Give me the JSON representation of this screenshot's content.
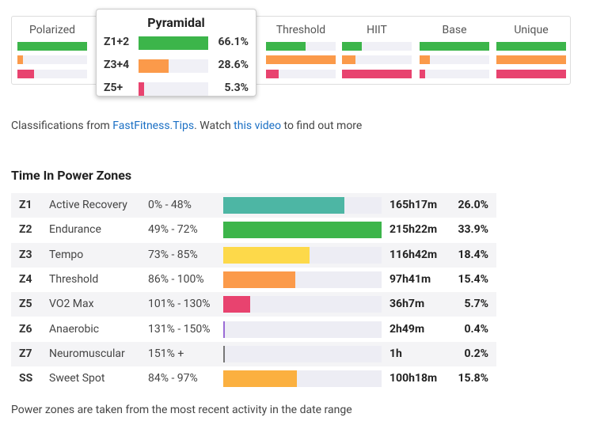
{
  "classifications": {
    "columns": [
      {
        "name": "Polarized",
        "values": [
          100,
          8,
          24
        ]
      },
      {
        "name": "Pyramidal",
        "labels": [
          "Z1+2",
          "Z3+4",
          "Z5+"
        ],
        "values": [
          66.1,
          28.6,
          5.3
        ],
        "value_labels": [
          "66.1%",
          "28.6%",
          "5.3%"
        ]
      },
      {
        "name": "Threshold",
        "values": [
          57,
          100,
          18
        ]
      },
      {
        "name": "HIIT",
        "values": [
          28,
          19,
          100
        ]
      },
      {
        "name": "Base",
        "values": [
          100,
          15,
          8
        ]
      },
      {
        "name": "Unique",
        "values": [
          100,
          100,
          100
        ]
      }
    ],
    "colors": [
      "#3cb54a",
      "#fb9a4a",
      "#e8436f"
    ],
    "highlighted": 1
  },
  "note": {
    "prefix": "Classifications from ",
    "link1": "FastFitness.Tips",
    "middle": ". Watch ",
    "link2": "this video",
    "suffix": " to find out more"
  },
  "table": {
    "title": "Time In Power Zones",
    "rows": [
      {
        "zone": "Z1",
        "name": "Active Recovery",
        "range": "0% - 48%",
        "time": "165h17m",
        "percent": {
          "value": 26.0,
          "label": "26.0%"
        },
        "color": "#4db6a4"
      },
      {
        "zone": "Z2",
        "name": "Endurance",
        "range": "49% - 72%",
        "time": "215h22m",
        "percent": {
          "value": 33.9,
          "label": "33.9%"
        },
        "color": "#3cb54a"
      },
      {
        "zone": "Z3",
        "name": "Tempo",
        "range": "73% - 85%",
        "time": "116h42m",
        "percent": {
          "value": 18.4,
          "label": "18.4%"
        },
        "color": "#fdd94a"
      },
      {
        "zone": "Z4",
        "name": "Threshold",
        "range": "86% - 100%",
        "time": "97h41m",
        "percent": {
          "value": 15.4,
          "label": "15.4%"
        },
        "color": "#fb9a4a"
      },
      {
        "zone": "Z5",
        "name": "VO2 Max",
        "range": "101% - 130%",
        "time": "36h7m",
        "percent": {
          "value": 5.7,
          "label": "5.7%"
        },
        "color": "#e8436f"
      },
      {
        "zone": "Z6",
        "name": "Anaerobic",
        "range": "131% - 150%",
        "time": "2h49m",
        "percent": {
          "value": 0.4,
          "label": "0.4%"
        },
        "color": "#9a6bd6"
      },
      {
        "zone": "Z7",
        "name": "Neuromuscular",
        "range": "151% +",
        "time": "1h",
        "percent": {
          "value": 0.2,
          "label": "0.2%"
        },
        "color": "#777777"
      },
      {
        "zone": "SS",
        "name": "Sweet Spot",
        "range": "84% - 97%",
        "time": "100h18m",
        "percent": {
          "value": 15.8,
          "label": "15.8%"
        },
        "color": "#fbb040"
      }
    ]
  },
  "footer": "Power zones are taken from the most recent activity in the date range"
}
